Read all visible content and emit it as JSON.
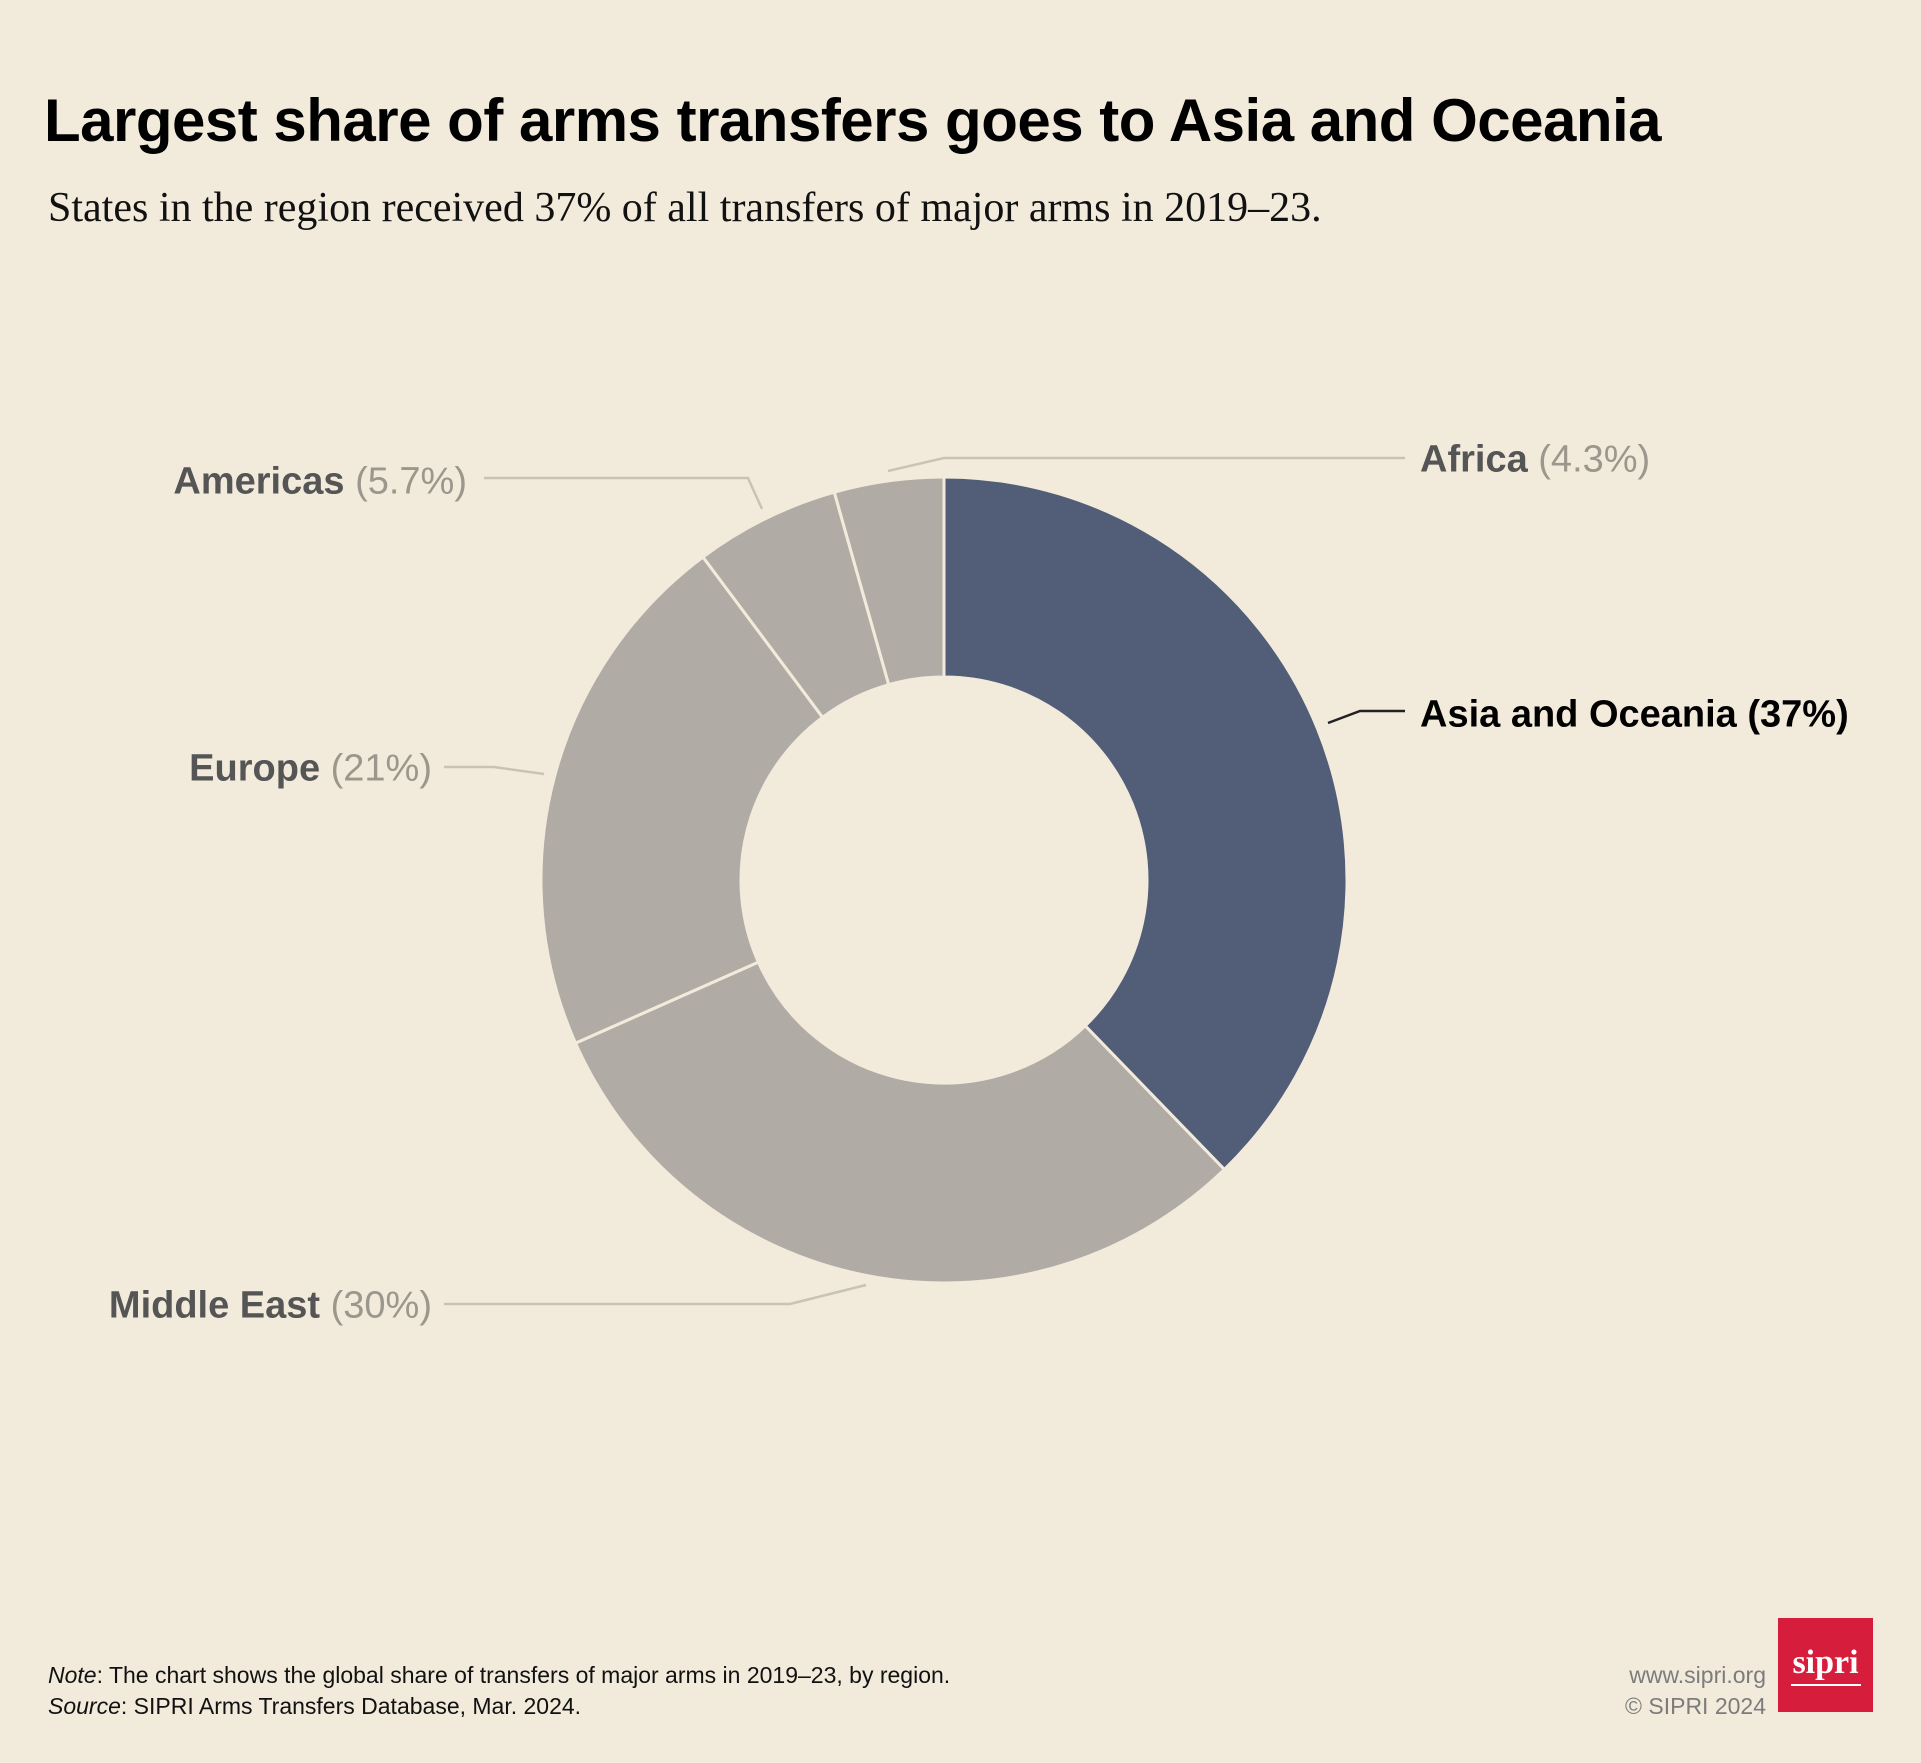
{
  "title": "Largest share of arms transfers goes to Asia and Oceania",
  "subtitle": "States in the region received 37% of all transfers of major arms in 2019–23.",
  "chart_data": {
    "type": "pie",
    "variant": "donut",
    "series": [
      {
        "name": "Asia and Oceania",
        "value": 37,
        "label": "(37%)",
        "color": "#525e77",
        "highlight": true
      },
      {
        "name": "Middle East",
        "value": 30,
        "label": "(30%)",
        "color": "#b0aca5",
        "highlight": false
      },
      {
        "name": "Europe",
        "value": 21,
        "label": "(21%)",
        "color": "#b0aca5",
        "highlight": false
      },
      {
        "name": "Americas",
        "value": 5.7,
        "label": "(5.7%)",
        "color": "#b0aca5",
        "highlight": false
      },
      {
        "name": "Africa",
        "value": 4.3,
        "label": "(4.3%)",
        "color": "#b0aca5",
        "highlight": false
      }
    ]
  },
  "footer": {
    "note_label": "Note",
    "note_text": ": The chart shows the global share of transfers of major arms in 2019–23, by region.",
    "source_label": "Source",
    "source_text": ": SIPRI Arms Transfers Database, Mar. 2024."
  },
  "credits": {
    "url": "www.sipri.org",
    "copyright": "© SIPRI 2024",
    "logo_text": "sipri"
  }
}
